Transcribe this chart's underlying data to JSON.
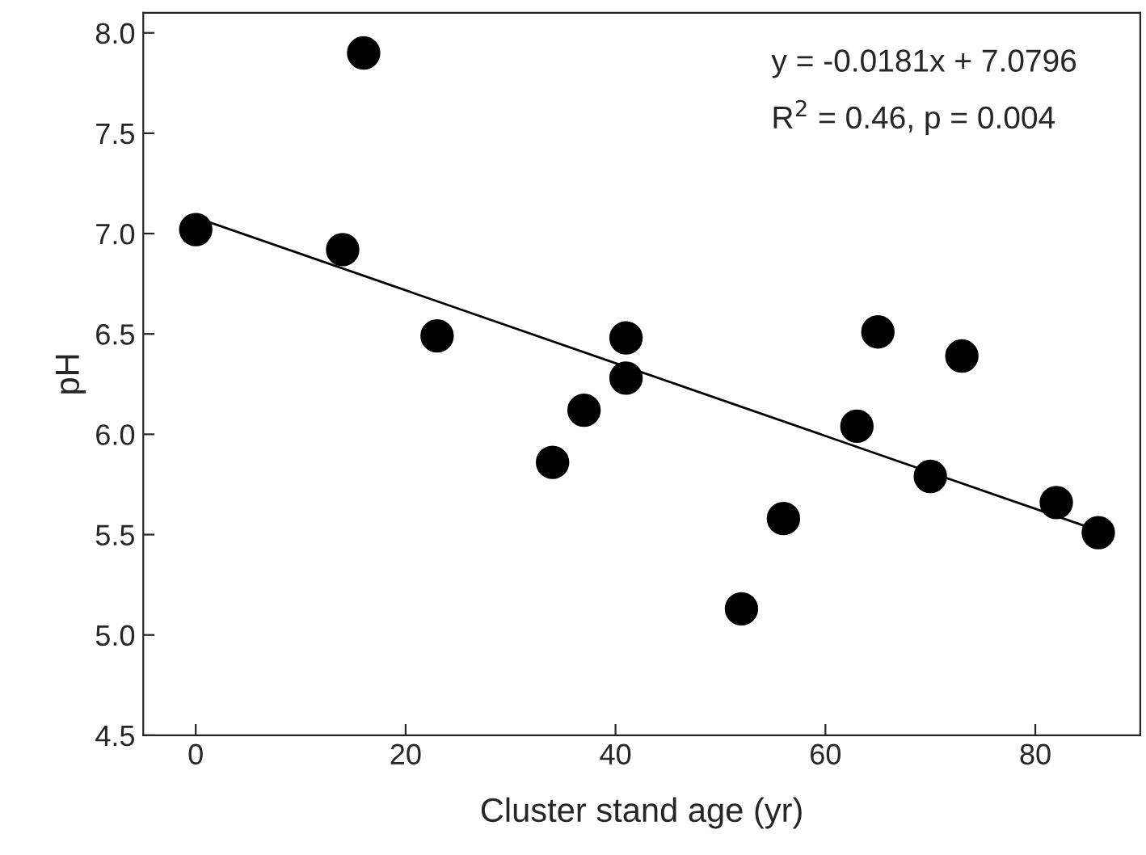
{
  "chart_data": {
    "type": "scatter",
    "xlabel": "Cluster stand age (yr)",
    "ylabel": "pH",
    "annotations": [
      "y = -0.0181x + 7.0796",
      "R$^{2}$ = 0.46, p = 0.004"
    ],
    "series": [
      {
        "color": "#000000",
        "marker": "circle",
        "x": [
          0,
          14,
          16,
          23,
          34,
          37,
          41,
          41,
          52,
          56,
          63,
          65,
          70,
          73,
          82,
          86
        ],
        "values": [
          7.02,
          6.92,
          7.9,
          6.49,
          5.86,
          6.12,
          6.48,
          6.28,
          5.13,
          5.58,
          6.04,
          6.51,
          5.79,
          6.39,
          5.66,
          5.51
        ]
      },
      {
        "type": "line",
        "color": "#000000",
        "line_style": "solid",
        "x": [
          0,
          86
        ],
        "values": [
          7.08,
          5.52
        ]
      }
    ],
    "xlim": [
      -5,
      90
    ],
    "ylim": [
      4.5,
      8.1
    ],
    "xticks": [
      0,
      20,
      40,
      60,
      80
    ],
    "yticks": [
      {
        "value": 4.5,
        "label": "4.5"
      },
      {
        "value": 5.0,
        "label": "5.0"
      },
      {
        "value": 5.5,
        "label": "5.5"
      },
      {
        "value": 6.0,
        "label": "6.0"
      },
      {
        "value": 6.5,
        "label": "6.5"
      },
      {
        "value": 7.0,
        "label": "7.0"
      },
      {
        "value": 7.5,
        "label": "7.5"
      },
      {
        "value": 8.0,
        "label": "8.0"
      }
    ],
    "grid": false,
    "legend": false
  }
}
